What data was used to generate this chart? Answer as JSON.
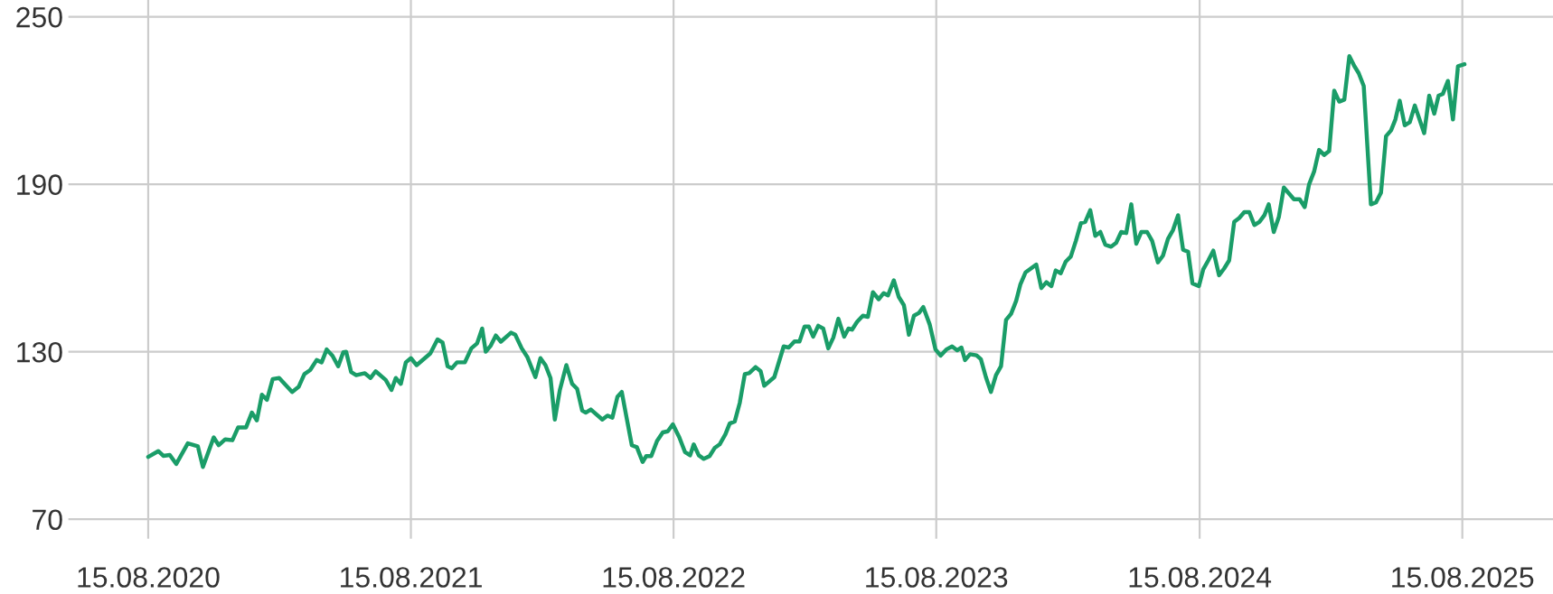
{
  "chart_data": {
    "type": "line",
    "x": [
      "2020-08-15",
      "2020-08-29",
      "2020-09-05",
      "2020-09-14",
      "2020-09-23",
      "2020-10-09",
      "2020-10-23",
      "2020-10-30",
      "2020-11-14",
      "2020-11-21",
      "2020-11-30",
      "2020-12-10",
      "2020-12-18",
      "2020-12-29",
      "2021-01-06",
      "2021-01-13",
      "2021-01-20",
      "2021-01-27",
      "2021-02-04",
      "2021-02-13",
      "2021-03-03",
      "2021-03-12",
      "2021-03-20",
      "2021-03-28",
      "2021-04-06",
      "2021-04-13",
      "2021-04-20",
      "2021-04-28",
      "2021-05-06",
      "2021-05-13",
      "2021-05-17",
      "2021-05-24",
      "2021-05-31",
      "2021-06-12",
      "2021-06-20",
      "2021-06-27",
      "2021-07-11",
      "2021-07-19",
      "2021-07-25",
      "2021-08-01",
      "2021-08-08",
      "2021-08-15",
      "2021-08-23",
      "2021-09-11",
      "2021-09-21",
      "2021-09-28",
      "2021-10-05",
      "2021-10-11",
      "2021-10-18",
      "2021-10-29",
      "2021-11-07",
      "2021-11-15",
      "2021-11-22",
      "2021-11-27",
      "2021-12-04",
      "2021-12-11",
      "2021-12-18",
      "2022-01-01",
      "2022-01-07",
      "2022-01-16",
      "2022-01-24",
      "2022-02-04",
      "2022-02-11",
      "2022-02-18",
      "2022-02-25",
      "2022-03-03",
      "2022-03-10",
      "2022-03-19",
      "2022-03-27",
      "2022-04-03",
      "2022-04-10",
      "2022-04-15",
      "2022-04-22",
      "2022-05-08",
      "2022-05-15",
      "2022-05-22",
      "2022-05-29",
      "2022-06-04",
      "2022-06-11",
      "2022-06-18",
      "2022-06-25",
      "2022-07-03",
      "2022-07-08",
      "2022-07-15",
      "2022-07-23",
      "2022-07-31",
      "2022-08-07",
      "2022-08-14",
      "2022-08-23",
      "2022-08-31",
      "2022-09-07",
      "2022-09-12",
      "2022-09-19",
      "2022-09-26",
      "2022-10-04",
      "2022-10-11",
      "2022-10-18",
      "2022-10-26",
      "2022-11-01",
      "2022-11-08",
      "2022-11-15",
      "2022-11-22",
      "2022-11-28",
      "2022-12-07",
      "2022-12-14",
      "2022-12-19",
      "2023-01-02",
      "2023-01-15",
      "2023-01-22",
      "2023-01-30",
      "2023-02-06",
      "2023-02-13",
      "2023-02-19",
      "2023-02-25",
      "2023-03-04",
      "2023-03-11",
      "2023-03-18",
      "2023-03-25",
      "2023-04-01",
      "2023-04-09",
      "2023-04-15",
      "2023-04-20",
      "2023-04-27",
      "2023-05-05",
      "2023-05-12",
      "2023-05-19",
      "2023-05-27",
      "2023-06-03",
      "2023-06-09",
      "2023-06-17",
      "2023-06-24",
      "2023-07-01",
      "2023-07-08",
      "2023-07-15",
      "2023-07-22",
      "2023-07-28",
      "2023-08-06",
      "2023-08-14",
      "2023-08-21",
      "2023-08-29",
      "2023-09-06",
      "2023-09-13",
      "2023-09-19",
      "2023-09-24",
      "2023-10-01",
      "2023-10-10",
      "2023-10-16",
      "2023-10-23",
      "2023-10-30",
      "2023-11-06",
      "2023-11-13",
      "2023-11-20",
      "2023-11-27",
      "2023-12-04",
      "2023-12-10",
      "2023-12-17",
      "2024-01-01",
      "2024-01-08",
      "2024-01-15",
      "2024-01-22",
      "2024-01-28",
      "2024-02-04",
      "2024-02-11",
      "2024-02-18",
      "2024-02-25",
      "2024-03-03",
      "2024-03-09",
      "2024-03-16",
      "2024-03-23",
      "2024-03-30",
      "2024-04-06",
      "2024-04-14",
      "2024-04-21",
      "2024-04-28",
      "2024-05-05",
      "2024-05-12",
      "2024-05-19",
      "2024-05-26",
      "2024-06-03",
      "2024-06-10",
      "2024-06-18",
      "2024-06-25",
      "2024-07-02",
      "2024-07-09",
      "2024-07-16",
      "2024-07-23",
      "2024-07-30",
      "2024-08-05",
      "2024-08-14",
      "2024-08-20",
      "2024-08-27",
      "2024-09-03",
      "2024-09-11",
      "2024-09-18",
      "2024-09-25",
      "2024-10-02",
      "2024-10-09",
      "2024-10-16",
      "2024-10-23",
      "2024-10-30",
      "2024-11-06",
      "2024-11-13",
      "2024-11-19",
      "2024-11-26",
      "2024-12-03",
      "2024-12-10",
      "2024-12-17",
      "2024-12-24",
      "2025-01-01",
      "2025-01-08",
      "2025-01-14",
      "2025-01-21",
      "2025-01-28",
      "2025-02-04",
      "2025-02-11",
      "2025-02-18",
      "2025-02-25",
      "2025-03-04",
      "2025-03-11",
      "2025-03-18",
      "2025-03-24",
      "2025-03-31",
      "2025-04-10",
      "2025-04-17",
      "2025-04-24",
      "2025-05-01",
      "2025-05-08",
      "2025-05-14",
      "2025-05-20",
      "2025-05-27",
      "2025-06-03",
      "2025-06-10",
      "2025-06-23",
      "2025-06-30",
      "2025-07-07",
      "2025-07-13",
      "2025-07-19",
      "2025-07-26",
      "2025-08-02",
      "2025-08-09",
      "2025-08-18"
    ],
    "series": [
      {
        "color": "#1a9d68",
        "values": [
          92.3,
          94.4,
          92.7,
          93,
          89.8,
          97.2,
          96.1,
          88.7,
          99.3,
          96.5,
          98.6,
          98.3,
          102.9,
          102.9,
          108.2,
          105.4,
          114.6,
          112.8,
          120.2,
          120.6,
          115.6,
          117.4,
          122,
          123.4,
          127,
          126.2,
          130.8,
          128.6,
          124.8,
          129.8,
          130,
          122.7,
          121.6,
          122.3,
          120.6,
          123,
          119.9,
          116.3,
          120.6,
          118.5,
          126.2,
          127.7,
          125.2,
          129.4,
          134.4,
          133.3,
          124.8,
          124.1,
          126.2,
          126.2,
          131.2,
          133,
          138.3,
          130,
          132.2,
          135.8,
          133.6,
          136.8,
          136.1,
          131.2,
          128,
          120.9,
          127.7,
          125.2,
          120.6,
          105.7,
          116.3,
          125.2,
          118.5,
          116.7,
          108.9,
          108.2,
          109.3,
          105.7,
          107.1,
          106.4,
          113.9,
          115.6,
          106,
          96.5,
          95.8,
          90.5,
          92.6,
          92.6,
          98,
          101.1,
          101.5,
          104,
          99.3,
          94,
          92.9,
          96.8,
          92.9,
          91.6,
          92.6,
          95.5,
          96.8,
          100.4,
          104.3,
          105,
          111.7,
          122,
          122.3,
          124.5,
          123,
          117.8,
          120.9,
          131.9,
          131.5,
          133.7,
          133.7,
          139,
          139,
          135.4,
          139.3,
          138.3,
          131.2,
          135.1,
          141.8,
          135.4,
          138.3,
          137.9,
          140.7,
          142.9,
          142.5,
          151.3,
          148.8,
          151,
          150.2,
          155.6,
          149.6,
          146.7,
          136.1,
          142.9,
          143.9,
          146,
          139.7,
          130.8,
          128.6,
          130.8,
          131.9,
          130.5,
          131.5,
          127,
          129.1,
          128.7,
          127.3,
          120.9,
          115.6,
          121.6,
          124.8,
          141.4,
          143.6,
          148.2,
          154.2,
          158.4,
          161.2,
          152.8,
          154.9,
          153.5,
          159.1,
          158.1,
          162.3,
          164.1,
          169.7,
          176.1,
          176.5,
          180.7,
          171.5,
          172.9,
          168.3,
          167.6,
          169,
          172.9,
          172.5,
          182.8,
          168.7,
          172.9,
          172.9,
          169.7,
          162,
          164.4,
          170.4,
          173.6,
          178.9,
          166.5,
          165.8,
          154.5,
          153.5,
          159.5,
          162.7,
          166.2,
          157.4,
          159.8,
          162.7,
          176.5,
          177.9,
          180,
          180,
          175.4,
          176.5,
          178.9,
          182.8,
          172.9,
          178.2,
          188.8,
          186.7,
          184.6,
          184.6,
          181.8,
          189.9,
          194.5,
          202.3,
          200.5,
          201.9,
          223.5,
          219.6,
          220.3,
          235.9,
          232.3,
          229.8,
          225.2,
          182.8,
          183.5,
          187,
          207.2,
          209.3,
          213.2,
          219.9,
          211.1,
          212.2,
          218.2,
          208.3,
          221.7,
          215.3,
          221.7,
          222.4,
          227,
          213.2,
          232.3,
          233
        ]
      }
    ],
    "xlim": [
      "2020-04-26",
      "2025-12-19"
    ],
    "ylim": [
      63,
      256
    ],
    "xticks": [
      {
        "value": "2020-08-15",
        "label": "15.08.2020"
      },
      {
        "value": "2021-08-15",
        "label": "15.08.2021"
      },
      {
        "value": "2022-08-15",
        "label": "15.08.2022"
      },
      {
        "value": "2023-08-15",
        "label": "15.08.2023"
      },
      {
        "value": "2024-08-15",
        "label": "15.08.2024"
      },
      {
        "value": "2025-08-15",
        "label": "15.08.2025"
      }
    ],
    "yticks": [
      70,
      130,
      190,
      250
    ],
    "grid": true,
    "marker": "none",
    "line_style": "solid"
  }
}
